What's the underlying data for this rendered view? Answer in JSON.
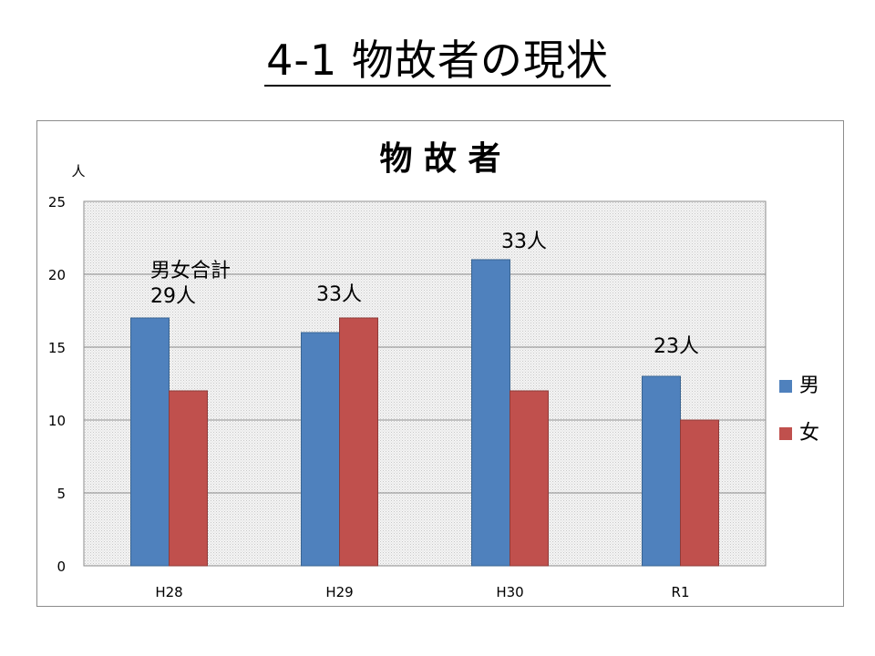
{
  "page": {
    "title": "4-1 物故者の現状"
  },
  "chart_data": {
    "type": "bar",
    "title": "物 故 者",
    "ylabel": "人",
    "xlabel": "",
    "categories": [
      "H28",
      "H29",
      "H30",
      "R1"
    ],
    "series": [
      {
        "name": "男",
        "values": [
          17,
          16,
          21,
          13
        ],
        "color": "#4f81bd"
      },
      {
        "name": "女",
        "values": [
          12,
          17,
          12,
          10
        ],
        "color": "#c0504d"
      }
    ],
    "ylim": [
      0,
      25
    ],
    "yticks": [
      0,
      5,
      10,
      15,
      20,
      25
    ],
    "grid": true,
    "legend": "right",
    "annotations": [
      {
        "category": "H28",
        "lines": [
          "男女合計",
          "29人"
        ]
      },
      {
        "category": "H29",
        "lines": [
          "33人"
        ]
      },
      {
        "category": "H30",
        "lines": [
          "33人"
        ]
      },
      {
        "category": "R1",
        "lines": [
          "23人"
        ]
      }
    ]
  }
}
